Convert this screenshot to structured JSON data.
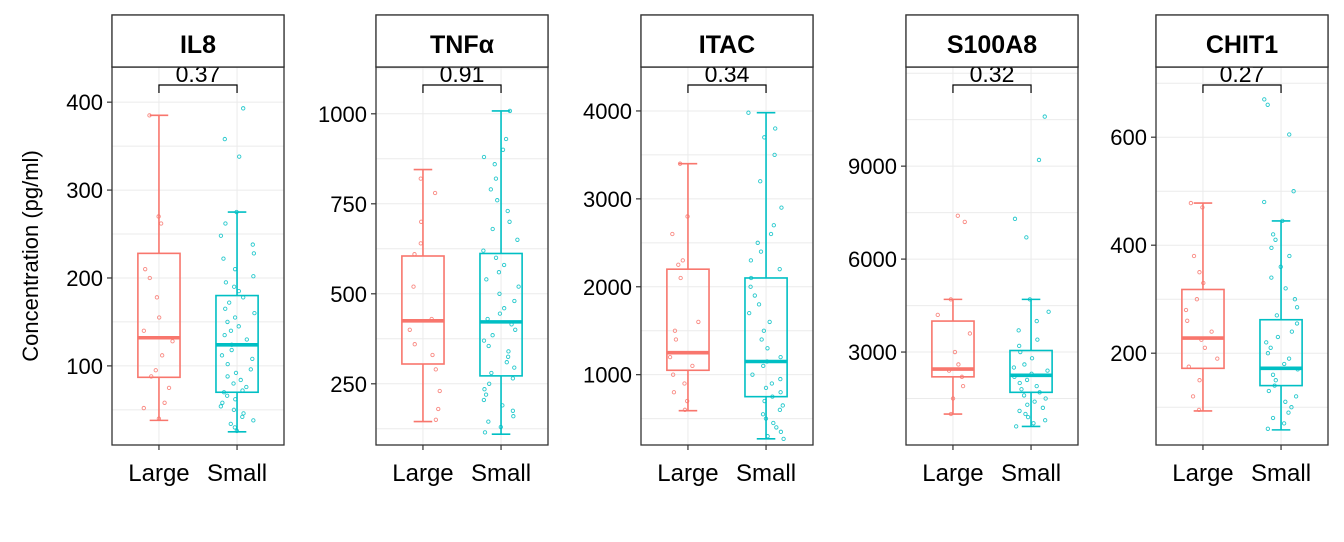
{
  "ylabel": "Concentration (pg/ml)",
  "colors": {
    "large": "#F8766D",
    "small": "#00BFC4",
    "grid": "#EBEBEB",
    "panel_border": "#333333"
  },
  "chart_data": [
    {
      "type": "box",
      "title": "IL8",
      "categories": [
        "Large",
        "Small"
      ],
      "pvalue": "0.37",
      "ylim": [
        10,
        440
      ],
      "yticks": [
        100,
        200,
        300,
        400
      ],
      "boxes": [
        {
          "group": "Large",
          "min": 38,
          "q1": 87,
          "median": 132,
          "q3": 228,
          "max": 385
        },
        {
          "group": "Small",
          "min": 25,
          "q1": 70,
          "median": 124,
          "q3": 180,
          "max": 275
        }
      ],
      "points": [
        {
          "group": "Large",
          "values": [
            270,
            262,
            210,
            200,
            178,
            155,
            140,
            128,
            112,
            95,
            88,
            75,
            58,
            52,
            40,
            385
          ]
        },
        {
          "group": "Small",
          "values": [
            393,
            358,
            338,
            275,
            262,
            248,
            238,
            228,
            222,
            210,
            202,
            195,
            190,
            185,
            178,
            172,
            165,
            160,
            155,
            150,
            145,
            140,
            135,
            130,
            124,
            118,
            112,
            108,
            102,
            96,
            92,
            88,
            84,
            80,
            76,
            72,
            70,
            66,
            62,
            58,
            54,
            50,
            46,
            42,
            38,
            34,
            30,
            26
          ]
        }
      ]
    },
    {
      "type": "box",
      "title": "TNFα",
      "categories": [
        "Large",
        "Small"
      ],
      "pvalue": "0.91",
      "ylim": [
        80,
        1130
      ],
      "yticks": [
        250,
        500,
        750,
        1000
      ],
      "boxes": [
        {
          "group": "Large",
          "min": 145,
          "q1": 305,
          "median": 425,
          "q3": 605,
          "max": 845
        },
        {
          "group": "Small",
          "min": 110,
          "q1": 272,
          "median": 422,
          "q3": 612,
          "max": 1008
        }
      ],
      "points": [
        {
          "group": "Large",
          "values": [
            820,
            780,
            700,
            640,
            610,
            520,
            430,
            400,
            360,
            330,
            290,
            230,
            180,
            150
          ]
        },
        {
          "group": "Small",
          "values": [
            1008,
            930,
            900,
            880,
            860,
            820,
            790,
            760,
            730,
            700,
            680,
            650,
            620,
            600,
            580,
            560,
            540,
            520,
            500,
            480,
            460,
            445,
            430,
            415,
            400,
            385,
            370,
            355,
            340,
            325,
            310,
            295,
            280,
            265,
            250,
            235,
            220,
            205,
            190,
            175,
            160,
            145,
            130,
            115
          ]
        }
      ]
    },
    {
      "type": "box",
      "title": "ITAC",
      "categories": [
        "Large",
        "Small"
      ],
      "pvalue": "0.34",
      "ylim": [
        200,
        4500
      ],
      "yticks": [
        1000,
        2000,
        3000,
        4000
      ],
      "boxes": [
        {
          "group": "Large",
          "min": 590,
          "q1": 1050,
          "median": 1250,
          "q3": 2200,
          "max": 3400
        },
        {
          "group": "Small",
          "min": 270,
          "q1": 750,
          "median": 1150,
          "q3": 2100,
          "max": 3980
        }
      ],
      "points": [
        {
          "group": "Large",
          "values": [
            3400,
            2800,
            2600,
            2300,
            2250,
            2100,
            1600,
            1500,
            1400,
            1200,
            1100,
            1000,
            900,
            800,
            700,
            600
          ]
        },
        {
          "group": "Small",
          "values": [
            3980,
            3800,
            3700,
            3500,
            3200,
            2900,
            2700,
            2600,
            2500,
            2400,
            2300,
            2200,
            2100,
            2000,
            1900,
            1800,
            1700,
            1600,
            1500,
            1400,
            1300,
            1200,
            1150,
            1100,
            1000,
            950,
            900,
            850,
            800,
            750,
            700,
            650,
            600,
            550,
            500,
            450,
            400,
            350,
            300,
            270
          ]
        }
      ]
    },
    {
      "type": "box",
      "title": "S100A8",
      "categories": [
        "Large",
        "Small"
      ],
      "pvalue": "0.32",
      "ylim": [
        0,
        12200
      ],
      "yticks": [
        3000,
        6000,
        9000
      ],
      "boxes": [
        {
          "group": "Large",
          "min": 1000,
          "q1": 2200,
          "median": 2450,
          "q3": 4000,
          "max": 4700
        },
        {
          "group": "Small",
          "min": 600,
          "q1": 1700,
          "median": 2250,
          "q3": 3050,
          "max": 4700
        }
      ],
      "points": [
        {
          "group": "Large",
          "values": [
            7400,
            7200,
            4700,
            4200,
            3600,
            3000,
            2600,
            2400,
            2200,
            1900,
            1500,
            1000
          ]
        },
        {
          "group": "Small",
          "values": [
            10600,
            9200,
            7300,
            6700,
            4700,
            4300,
            4000,
            3700,
            3400,
            3200,
            3000,
            2800,
            2600,
            2500,
            2400,
            2300,
            2200,
            2100,
            2000,
            1900,
            1800,
            1700,
            1600,
            1500,
            1400,
            1300,
            1200,
            1100,
            1000,
            900,
            800,
            700,
            600
          ]
        }
      ]
    },
    {
      "type": "box",
      "title": "CHIT1",
      "categories": [
        "Large",
        "Small"
      ],
      "pvalue": "0.27",
      "ylim": [
        30,
        730
      ],
      "yticks": [
        200,
        400,
        600
      ],
      "boxes": [
        {
          "group": "Large",
          "min": 93,
          "q1": 172,
          "median": 228,
          "q3": 318,
          "max": 478
        },
        {
          "group": "Small",
          "min": 58,
          "q1": 140,
          "median": 172,
          "q3": 262,
          "max": 445
        }
      ],
      "points": [
        {
          "group": "Large",
          "values": [
            478,
            470,
            380,
            350,
            330,
            300,
            280,
            260,
            240,
            225,
            210,
            190,
            175,
            150,
            120,
            95
          ]
        },
        {
          "group": "Small",
          "values": [
            670,
            660,
            605,
            500,
            480,
            445,
            420,
            410,
            395,
            380,
            360,
            340,
            320,
            300,
            285,
            270,
            255,
            240,
            230,
            220,
            210,
            200,
            190,
            180,
            170,
            160,
            150,
            140,
            130,
            120,
            110,
            100,
            90,
            80,
            70,
            60
          ]
        }
      ]
    }
  ]
}
